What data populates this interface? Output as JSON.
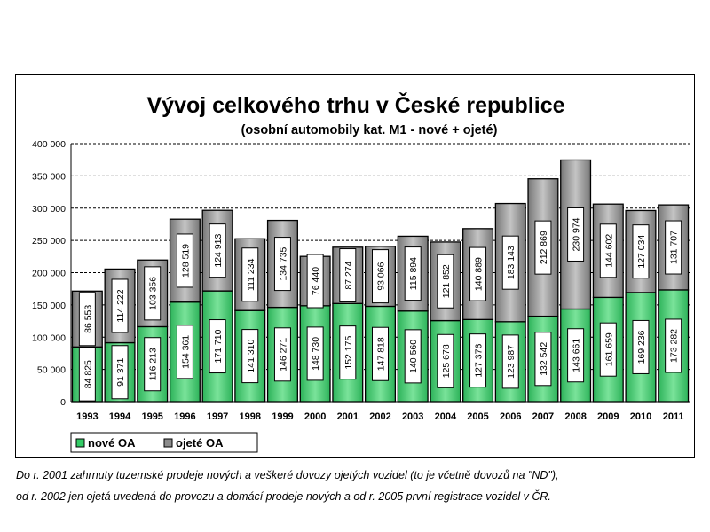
{
  "chart_data": {
    "type": "bar",
    "stacked": true,
    "title": "Vývoj celkového trhu v České republice",
    "subtitle": "(osobní automobily kat. M1 - nové + ojeté)",
    "categories": [
      "1993",
      "1994",
      "1995",
      "1996",
      "1997",
      "1998",
      "1999",
      "2000",
      "2001",
      "2002",
      "2003",
      "2004",
      "2005",
      "2006",
      "2007",
      "2008",
      "2009",
      "2010",
      "2011"
    ],
    "series": [
      {
        "name": "nové OA",
        "color": "#33cc66",
        "values": [
          84825,
          91371,
          116213,
          154361,
          171710,
          141310,
          146271,
          148730,
          152175,
          147818,
          140560,
          125678,
          127376,
          123987,
          132542,
          143661,
          161659,
          169236,
          173282
        ],
        "labels": [
          "84 825",
          "91 371",
          "116 213",
          "154 361",
          "171 710",
          "141 310",
          "146 271",
          "148 730",
          "152 175",
          "147 818",
          "140 560",
          "125 678",
          "127 376",
          "123 987",
          "132 542",
          "143 661",
          "161 659",
          "169 236",
          "173 282"
        ]
      },
      {
        "name": "ojeté OA",
        "color": "#8c8c8c",
        "values": [
          86553,
          114222,
          103356,
          128519,
          124913,
          111234,
          134735,
          76440,
          87274,
          93066,
          115894,
          121852,
          140889,
          183143,
          212869,
          230974,
          144602,
          127034,
          131707
        ],
        "labels": [
          "86 553",
          "114 222",
          "103 356",
          "128 519",
          "124 913",
          "111 234",
          "134 735",
          "76 440",
          "87 274",
          "93 066",
          "115 894",
          "121 852",
          "140 889",
          "183 143",
          "212 869",
          "230 974",
          "144 602",
          "127 034",
          "131 707"
        ]
      }
    ],
    "yticks": [
      "0",
      "50 000",
      "100 000",
      "150 000",
      "200 000",
      "250 000",
      "300 000",
      "350 000",
      "400 000"
    ],
    "ylim": [
      0,
      400000
    ],
    "grid": true,
    "legend": "bottom-left"
  },
  "footnote": {
    "line1": "Do r. 2001 zahrnuty tuzemské prodeje nových a veškeré dovozy ojetých vozidel (to je včetně dovozů na \"ND\"),",
    "line2": "od r. 2002 jen ojetá uvedená do provozu a domácí prodeje nových a od r. 2005 první registrace vozidel v ČR."
  }
}
